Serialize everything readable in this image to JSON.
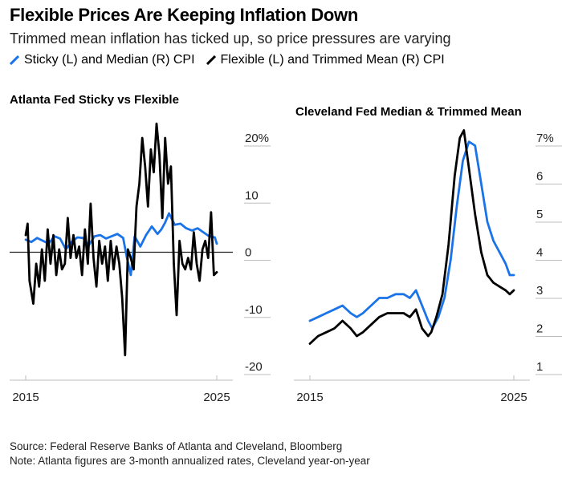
{
  "header": {
    "title": "Flexible Prices Are Keeping Inflation Down",
    "subtitle": "Trimmed mean inflation has ticked up, so price pressures are varying"
  },
  "legend": [
    {
      "label": "Sticky (L) and Median (R) CPI",
      "color": "#1a73e8"
    },
    {
      "label": "Flexible (L) and Trimmed Mean (R) CPI",
      "color": "#000000"
    }
  ],
  "footer": {
    "source": "Source: Federal Reserve Banks of Atlanta and Cleveland, Bloomberg",
    "note": "Note: Atlanta figures are 3-month annualized rates, Cleveland year-on-year"
  },
  "chart_data": [
    {
      "type": "line",
      "title": "Atlanta Fed Sticky vs Flexible",
      "ylim": [
        -20,
        22
      ],
      "yticks": [
        {
          "value": 20,
          "label": "20%"
        },
        {
          "value": 10,
          "label": "10"
        },
        {
          "value": 0,
          "label": "0"
        },
        {
          "value": -10,
          "label": "-10"
        },
        {
          "value": -20,
          "label": "-20"
        }
      ],
      "xlim": [
        2015,
        2025
      ],
      "xticks": [
        {
          "value": 2015,
          "label": "2015"
        },
        {
          "value": 2025,
          "label": "2025"
        }
      ],
      "zero_line": true,
      "series": [
        {
          "name": "Sticky CPI",
          "color": "#1a73e8",
          "x": [
            2015.0,
            2015.3,
            2015.6,
            2015.9,
            2016.2,
            2016.5,
            2016.8,
            2017.1,
            2017.4,
            2017.7,
            2018.0,
            2018.3,
            2018.6,
            2018.9,
            2019.2,
            2019.5,
            2019.8,
            2020.1,
            2020.3,
            2020.5,
            2020.7,
            2021.0,
            2021.3,
            2021.6,
            2021.9,
            2022.1,
            2022.3,
            2022.5,
            2022.8,
            2023.1,
            2023.4,
            2023.7,
            2024.0,
            2024.3,
            2024.6,
            2024.9,
            2025.0
          ],
          "y": [
            2.2,
            1.8,
            2.5,
            2.0,
            1.5,
            2.8,
            2.4,
            0.5,
            1.8,
            2.6,
            2.5,
            1.2,
            2.8,
            3.0,
            2.4,
            2.8,
            3.2,
            2.5,
            -1.0,
            -4.0,
            2.8,
            1.0,
            3.0,
            4.5,
            3.2,
            4.0,
            5.2,
            6.8,
            4.8,
            5.0,
            4.2,
            3.8,
            4.2,
            3.5,
            2.8,
            2.6,
            1.5
          ]
        },
        {
          "name": "Flexible CPI",
          "color": "#000000",
          "x": [
            2015.0,
            2015.1,
            2015.2,
            2015.4,
            2015.55,
            2015.7,
            2015.85,
            2016.0,
            2016.15,
            2016.3,
            2016.45,
            2016.6,
            2016.75,
            2016.9,
            2017.05,
            2017.2,
            2017.35,
            2017.5,
            2017.65,
            2017.8,
            2017.95,
            2018.1,
            2018.25,
            2018.4,
            2018.55,
            2018.7,
            2018.85,
            2019.0,
            2019.15,
            2019.3,
            2019.45,
            2019.6,
            2019.75,
            2019.9,
            2020.05,
            2020.2,
            2020.35,
            2020.5,
            2020.65,
            2020.8,
            2020.95,
            2021.1,
            2021.25,
            2021.4,
            2021.55,
            2021.7,
            2021.85,
            2022.0,
            2022.15,
            2022.3,
            2022.45,
            2022.6,
            2022.75,
            2022.9,
            2023.05,
            2023.2,
            2023.35,
            2023.5,
            2023.65,
            2023.8,
            2023.95,
            2024.1,
            2024.25,
            2024.4,
            2024.55,
            2024.7,
            2024.85,
            2025.0
          ],
          "y": [
            3.0,
            5.0,
            -5.0,
            -9.0,
            -2.0,
            -6.0,
            0.5,
            -5.0,
            4.0,
            -2.0,
            3.0,
            -4.0,
            0.5,
            -3.0,
            -2.0,
            6.0,
            -1.0,
            3.0,
            -1.0,
            1.0,
            -4.0,
            4.0,
            -2.0,
            8.5,
            -1.0,
            -6.0,
            2.0,
            -2.0,
            1.0,
            -5.0,
            2.0,
            -3.0,
            1.0,
            -2.0,
            -8.0,
            -18.0,
            0.5,
            -1.0,
            -3.0,
            8.0,
            12.0,
            20.0,
            15.0,
            8.0,
            18.0,
            14.0,
            22.5,
            17.0,
            6.0,
            20.0,
            12.0,
            15.0,
            -2.0,
            -11.0,
            2.0,
            -2.0,
            -3.0,
            -1.0,
            -3.0,
            3.5,
            -2.0,
            -5.0,
            0.5,
            2.0,
            -1.0,
            7.0,
            -4.0,
            -3.5
          ]
        }
      ]
    },
    {
      "type": "line",
      "title": "Cleveland Fed Median & Trimmed Mean",
      "ylim": [
        1,
        7.2
      ],
      "yticks": [
        {
          "value": 7,
          "label": "7%"
        },
        {
          "value": 6,
          "label": "6"
        },
        {
          "value": 5,
          "label": "5"
        },
        {
          "value": 4,
          "label": "4"
        },
        {
          "value": 3,
          "label": "3"
        },
        {
          "value": 2,
          "label": "2"
        },
        {
          "value": 1,
          "label": "1"
        }
      ],
      "xlim": [
        2015,
        2025
      ],
      "xticks": [
        {
          "value": 2015,
          "label": "2015"
        },
        {
          "value": 2025,
          "label": "2025"
        }
      ],
      "zero_line": false,
      "series": [
        {
          "name": "Median CPI",
          "color": "#1a73e8",
          "x": [
            2015.0,
            2015.4,
            2015.8,
            2016.2,
            2016.6,
            2017.0,
            2017.3,
            2017.6,
            2018.0,
            2018.4,
            2018.8,
            2019.2,
            2019.6,
            2019.9,
            2020.2,
            2020.5,
            2020.8,
            2021.0,
            2021.3,
            2021.6,
            2021.9,
            2022.2,
            2022.5,
            2022.8,
            2023.1,
            2023.4,
            2023.7,
            2024.0,
            2024.3,
            2024.6,
            2024.8,
            2025.0
          ],
          "y": [
            2.2,
            2.3,
            2.4,
            2.5,
            2.6,
            2.4,
            2.3,
            2.4,
            2.6,
            2.8,
            2.8,
            2.9,
            2.9,
            2.8,
            3.0,
            2.6,
            2.2,
            2.0,
            2.3,
            2.8,
            3.8,
            5.2,
            6.4,
            6.9,
            6.8,
            5.8,
            4.8,
            4.3,
            4.0,
            3.7,
            3.4,
            3.4
          ]
        },
        {
          "name": "Trimmed Mean CPI",
          "color": "#000000",
          "x": [
            2015.0,
            2015.4,
            2015.8,
            2016.2,
            2016.6,
            2017.0,
            2017.3,
            2017.6,
            2018.0,
            2018.4,
            2018.8,
            2019.2,
            2019.6,
            2019.9,
            2020.2,
            2020.5,
            2020.8,
            2020.95,
            2021.2,
            2021.5,
            2021.8,
            2022.1,
            2022.35,
            2022.55,
            2022.8,
            2023.1,
            2023.4,
            2023.7,
            2024.0,
            2024.3,
            2024.6,
            2024.8,
            2025.0
          ],
          "y": [
            1.6,
            1.8,
            1.9,
            2.0,
            2.2,
            2.0,
            1.8,
            1.9,
            2.1,
            2.3,
            2.4,
            2.4,
            2.4,
            2.3,
            2.5,
            2.0,
            1.8,
            1.9,
            2.3,
            2.9,
            4.2,
            6.0,
            7.0,
            7.2,
            6.2,
            5.0,
            4.0,
            3.4,
            3.2,
            3.1,
            3.0,
            2.9,
            3.0
          ]
        }
      ]
    }
  ]
}
